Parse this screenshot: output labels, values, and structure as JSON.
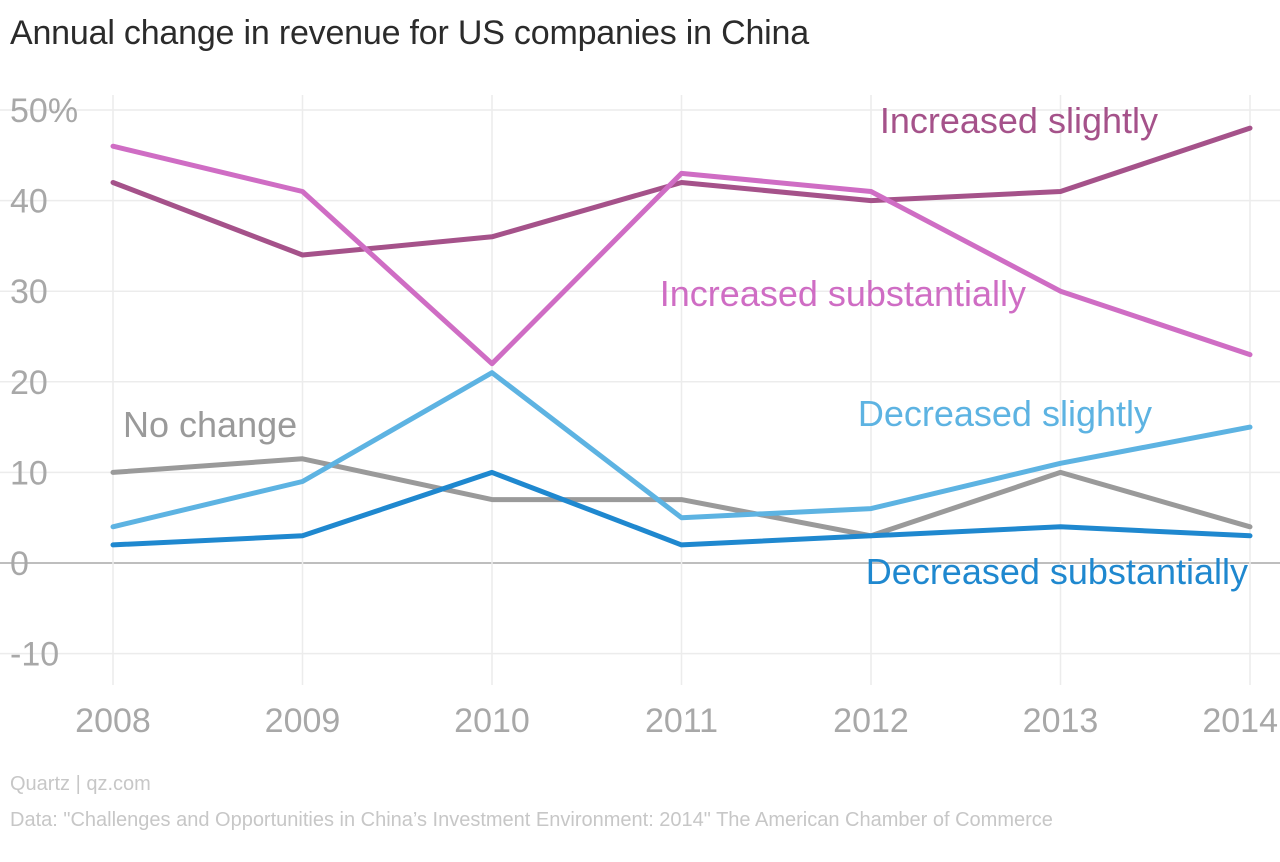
{
  "page": {
    "title": "Annual change in revenue for US companies in China",
    "source": "Quartz | qz.com",
    "data_note": "Data: \"Challenges and Opportunities in China’s Investment Environment: 2014\" The American Chamber of Commerce"
  },
  "chart_data": {
    "type": "line",
    "title": "Annual change in revenue for US companies in China",
    "xlabel": "",
    "ylabel": "",
    "x": [
      2008,
      2009,
      2010,
      2011,
      2012,
      2013,
      2014
    ],
    "x_tick_labels": [
      "2008",
      "2009",
      "2010",
      "2011",
      "2012",
      "2013",
      "2014"
    ],
    "y_ticks": [
      50,
      40,
      30,
      20,
      10,
      0,
      -10
    ],
    "y_tick_labels": [
      "50%",
      "40",
      "30",
      "20",
      "10",
      "0",
      "-10"
    ],
    "ylim": [
      -13,
      53
    ],
    "grid": true,
    "legend": "inline labels",
    "series": [
      {
        "name": "Increased slightly",
        "color": "#a5528a",
        "values": [
          42,
          34,
          36,
          42,
          40,
          41,
          48
        ]
      },
      {
        "name": "Increased substantially",
        "color": "#cf6dc4",
        "values": [
          46,
          41,
          22,
          43,
          41,
          30,
          23
        ]
      },
      {
        "name": "No change",
        "color": "#9a9a9a",
        "values": [
          10,
          11.5,
          7,
          7,
          3,
          10,
          4
        ]
      },
      {
        "name": "Decreased slightly",
        "color": "#5db3e2",
        "values": [
          4,
          9,
          21,
          5,
          6,
          11,
          15
        ]
      },
      {
        "name": "Decreased substantially",
        "color": "#1f88cf",
        "values": [
          2,
          3,
          10,
          2,
          3,
          4,
          3
        ]
      }
    ]
  }
}
